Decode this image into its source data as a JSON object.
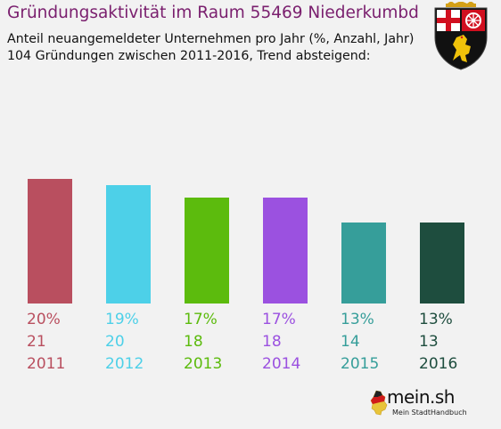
{
  "title": "Gründungsaktivität im Raum 55469 Niederkumbd",
  "subtitle_line1": "Anteil neuangemeldeter Unternehmen pro Jahr (%, Anzahl, Jahr)",
  "subtitle_line2": "104 Gründungen zwischen 2011-2016, Trend absteigend:",
  "logo": {
    "brand": "mein.sh",
    "tagline": "Mein StadtHandbuch"
  },
  "coat_of_arms_icon": "rhineland-palatinate-coat-of-arms-icon",
  "chart_data": {
    "type": "bar",
    "categories": [
      "2011",
      "2012",
      "2013",
      "2014",
      "2015",
      "2016"
    ],
    "values": [
      20,
      19,
      17,
      17,
      13,
      13
    ],
    "counts": [
      21,
      20,
      18,
      18,
      14,
      13
    ],
    "percent_labels": [
      "20%",
      "19%",
      "17%",
      "17%",
      "13%",
      "13%"
    ],
    "colors": [
      "#b94f5f",
      "#4dd0e8",
      "#5cbb0d",
      "#9b51e0",
      "#369e9a",
      "#1e4d3e"
    ],
    "ylim": [
      0,
      24
    ],
    "grid": false,
    "legend": "none"
  }
}
